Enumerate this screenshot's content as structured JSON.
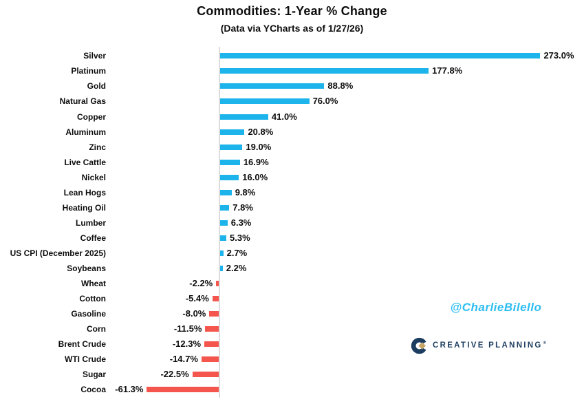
{
  "header": {
    "title": "Commodities: 1-Year % Change",
    "subtitle": "(Data via YCharts as of 1/27/26)"
  },
  "chart_data": {
    "type": "bar",
    "orientation": "horizontal",
    "title": "Commodities: 1-Year % Change",
    "subtitle": "(Data via YCharts as of 1/27/26)",
    "xlabel": "",
    "ylabel": "",
    "xlim": [
      -75,
      310
    ],
    "grid": false,
    "value_label_position": "outside-end",
    "categories": [
      "Silver",
      "Platinum",
      "Gold",
      "Natural Gas",
      "Copper",
      "Aluminum",
      "Zinc",
      "Live Cattle",
      "Nickel",
      "Lean Hogs",
      "Heating Oil",
      "Lumber",
      "Coffee",
      "US CPI (December 2025)",
      "Soybeans",
      "Wheat",
      "Cotton",
      "Gasoline",
      "Corn",
      "Brent Crude",
      "WTI Crude",
      "Sugar",
      "Cocoa"
    ],
    "values": [
      273.0,
      177.8,
      88.8,
      76.0,
      41.0,
      20.8,
      19.0,
      16.9,
      16.0,
      9.8,
      7.8,
      6.3,
      5.3,
      2.7,
      2.2,
      -2.2,
      -5.4,
      -8.0,
      -11.5,
      -12.3,
      -14.7,
      -22.5,
      -61.3
    ],
    "value_labels": [
      "273.0%",
      "177.8%",
      "88.8%",
      "76.0%",
      "41.0%",
      "20.8%",
      "19.0%",
      "16.9%",
      "16.0%",
      "9.8%",
      "7.8%",
      "6.3%",
      "5.3%",
      "2.7%",
      "2.2%",
      "-2.2%",
      "-5.4%",
      "-8.0%",
      "-11.5%",
      "-12.3%",
      "-14.7%",
      "-22.5%",
      "-61.3%"
    ],
    "positive_color": "#1cb4ea",
    "negative_color": "#f4554d",
    "axis_color": "#dcdcdc",
    "label_color": "#0d0d0d"
  },
  "watermark": {
    "handle": "@CharlieBilello",
    "color": "#2cbef2"
  },
  "logo": {
    "text": "CREATIVE PLANNING",
    "registered_mark": "®",
    "navy_color": "#1c3d5f",
    "gold_color": "#c6a465"
  }
}
